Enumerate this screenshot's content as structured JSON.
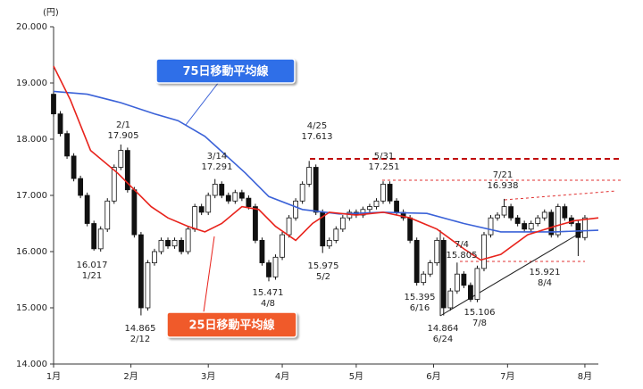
{
  "chart_data": {
    "type": "candlestick",
    "y_unit": "(円)",
    "xlim": [
      0,
      162
    ],
    "xticks": [
      {
        "value": 0,
        "label": "1月"
      },
      {
        "value": 23,
        "label": "2月"
      },
      {
        "value": 46,
        "label": "3月"
      },
      {
        "value": 68,
        "label": "4月"
      },
      {
        "value": 90,
        "label": "5月"
      },
      {
        "value": 113,
        "label": "6月"
      },
      {
        "value": 135,
        "label": "7月"
      },
      {
        "value": 158,
        "label": "8月"
      }
    ],
    "ylim": [
      14000,
      20000
    ],
    "yticks": [
      {
        "value": 14000,
        "label": "14.000"
      },
      {
        "value": 15000,
        "label": "15.000"
      },
      {
        "value": 16000,
        "label": "16.000"
      },
      {
        "value": 17000,
        "label": "17.000"
      },
      {
        "value": 18000,
        "label": "18.000"
      },
      {
        "value": 19000,
        "label": "19.000"
      },
      {
        "value": 20000,
        "label": "20.000"
      }
    ],
    "candles": {
      "up_color": "#ffffff",
      "down_color": "#111111",
      "x": [
        0,
        2,
        4,
        6,
        8,
        10,
        12,
        14,
        16,
        18,
        20,
        22,
        24,
        26,
        28,
        30,
        32,
        34,
        36,
        38,
        40,
        42,
        44,
        46,
        48,
        50,
        52,
        54,
        56,
        58,
        60,
        62,
        64,
        66,
        68,
        70,
        72,
        74,
        76,
        78,
        80,
        82,
        84,
        86,
        88,
        90,
        92,
        94,
        96,
        98,
        100,
        102,
        104,
        106,
        108,
        110,
        112,
        114,
        116,
        118,
        120,
        122,
        124,
        126,
        128,
        130,
        132,
        134,
        136,
        138,
        140,
        142,
        144,
        146,
        148,
        150,
        152,
        154,
        156,
        158
      ],
      "open": [
        18800,
        18450,
        18100,
        17700,
        17300,
        17000,
        16500,
        16050,
        16400,
        16900,
        17500,
        17800,
        17100,
        16300,
        15000,
        15800,
        16000,
        16200,
        16100,
        16200,
        16000,
        16400,
        16800,
        16700,
        17000,
        17200,
        17000,
        16900,
        17050,
        16950,
        16800,
        16200,
        15800,
        15550,
        15900,
        16300,
        16600,
        16900,
        17200,
        17500,
        16700,
        16100,
        16200,
        16400,
        16600,
        16700,
        16650,
        16750,
        16800,
        16900,
        17200,
        16900,
        16700,
        16600,
        16200,
        15450,
        15600,
        15800,
        16200,
        15000,
        15300,
        15600,
        15400,
        15150,
        15700,
        16300,
        16600,
        16650,
        16800,
        16600,
        16500,
        16400,
        16500,
        16600,
        16700,
        16300,
        16800,
        16600,
        16500,
        16250
      ],
      "high": [
        18850,
        18500,
        18150,
        17750,
        17350,
        17050,
        16550,
        16450,
        16950,
        17550,
        17905,
        17850,
        17150,
        16350,
        15850,
        16050,
        16250,
        16250,
        16250,
        16250,
        16450,
        16850,
        16850,
        17050,
        17291,
        17250,
        17050,
        17100,
        17100,
        17000,
        16850,
        16250,
        15850,
        15950,
        16350,
        16650,
        16950,
        17250,
        17613,
        17550,
        16750,
        16250,
        16450,
        16650,
        16750,
        16750,
        16800,
        16850,
        16950,
        17251,
        17250,
        16950,
        16750,
        16650,
        16250,
        15650,
        15850,
        16250,
        16250,
        15350,
        15805,
        15650,
        15450,
        15750,
        16350,
        16650,
        16700,
        16938,
        16850,
        16650,
        16550,
        16550,
        16650,
        16750,
        16750,
        16850,
        16850,
        16650,
        16550,
        16650
      ],
      "low": [
        18400,
        18050,
        17650,
        17250,
        16950,
        16450,
        16017,
        16000,
        16350,
        16850,
        17450,
        17050,
        16250,
        14865,
        14950,
        15750,
        15950,
        16050,
        16050,
        15950,
        15950,
        16350,
        16650,
        16650,
        16950,
        16950,
        16850,
        16850,
        16900,
        16750,
        16150,
        15750,
        15471,
        15500,
        15850,
        16250,
        16550,
        16850,
        17150,
        16650,
        15975,
        16050,
        16150,
        16350,
        16550,
        16600,
        16600,
        16700,
        16750,
        16850,
        16850,
        16650,
        16550,
        16150,
        15395,
        15400,
        15550,
        15750,
        14864,
        14950,
        15250,
        15350,
        15106,
        15100,
        15650,
        16250,
        16550,
        16600,
        16550,
        16450,
        16350,
        16350,
        16450,
        16550,
        16250,
        16250,
        16550,
        16450,
        15921,
        16200
      ],
      "close": [
        18450,
        18100,
        17700,
        17300,
        17000,
        16500,
        16050,
        16400,
        16900,
        17500,
        17800,
        17100,
        16300,
        15000,
        15800,
        16000,
        16200,
        16100,
        16200,
        16000,
        16400,
        16800,
        16700,
        17000,
        17200,
        17000,
        16900,
        17050,
        16950,
        16800,
        16200,
        15800,
        15550,
        15900,
        16300,
        16600,
        16900,
        17200,
        17500,
        16700,
        16100,
        16200,
        16400,
        16600,
        16700,
        16650,
        16750,
        16800,
        16900,
        17200,
        16900,
        16700,
        16600,
        16200,
        15450,
        15600,
        15800,
        16200,
        15000,
        15300,
        15600,
        15400,
        15150,
        15700,
        16300,
        16600,
        16650,
        16800,
        16600,
        16500,
        16400,
        16500,
        16600,
        16700,
        16300,
        16800,
        16600,
        16500,
        16250,
        16600
      ]
    },
    "series": [
      {
        "name": "75日移動平均線",
        "color": "#3b62d8",
        "box_color": "#2f6fe8",
        "x": [
          0,
          10,
          20,
          30,
          37,
          45,
          50,
          57,
          64,
          74,
          85,
          98,
          111,
          122,
          133,
          149,
          162
        ],
        "values": [
          18850,
          18800,
          18650,
          18450,
          18330,
          18050,
          17780,
          17400,
          16980,
          16750,
          16670,
          16700,
          16680,
          16500,
          16350,
          16350,
          16380
        ]
      },
      {
        "name": "25日移動平均線",
        "color": "#e8231c",
        "box_color": "#f05a2a",
        "x": [
          0,
          5,
          11,
          19,
          24,
          29,
          34,
          40,
          45,
          50,
          56,
          61,
          66,
          72,
          77,
          82,
          90,
          98,
          106,
          114,
          122,
          127,
          133,
          141,
          149,
          155,
          162
        ],
        "values": [
          19300,
          18700,
          17800,
          17400,
          17100,
          16800,
          16600,
          16450,
          16350,
          16500,
          16800,
          16750,
          16450,
          16200,
          16500,
          16700,
          16650,
          16700,
          16600,
          16400,
          16050,
          15850,
          15950,
          16300,
          16450,
          16550,
          16600
        ]
      }
    ],
    "annotations": [
      {
        "date": "2/1",
        "value": "17.905"
      },
      {
        "date": "1/21",
        "value": "16.017"
      },
      {
        "date": "2/12",
        "value": "14.865"
      },
      {
        "date": "3/14",
        "value": "17.291"
      },
      {
        "date": "4/8",
        "value": "15.471"
      },
      {
        "date": "4/25",
        "value": "17.613"
      },
      {
        "date": "5/2",
        "value": "15.975"
      },
      {
        "date": "5/31",
        "value": "17.251"
      },
      {
        "date": "6/16",
        "value": "15.395"
      },
      {
        "date": "6/24",
        "value": "14.864"
      },
      {
        "date": "7/4",
        "value": "15.805"
      },
      {
        "date": "7/8",
        "value": "15.106"
      },
      {
        "date": "7/21",
        "value": "16.938"
      },
      {
        "date": "8/4",
        "value": "15.921"
      }
    ]
  }
}
